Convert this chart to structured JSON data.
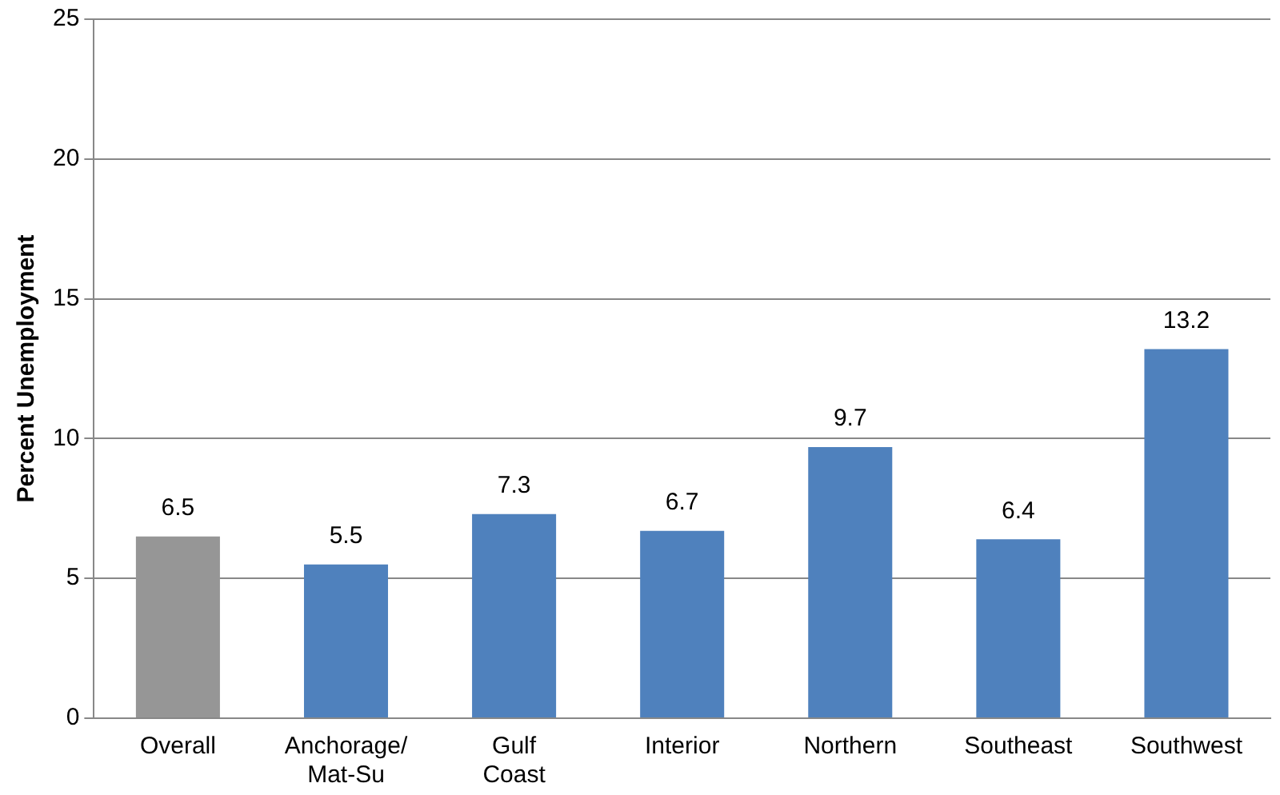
{
  "chart_data": {
    "type": "bar",
    "ylabel": "Percent Unemployment",
    "categories": [
      "Overall",
      "Anchorage/Mat-Su",
      "Gulf Coast",
      "Interior",
      "Northern",
      "Southeast",
      "Southwest"
    ],
    "values": [
      6.5,
      5.5,
      7.3,
      6.7,
      9.7,
      6.4,
      13.2
    ],
    "colors": [
      "#969696",
      "#4f81bd",
      "#4f81bd",
      "#4f81bd",
      "#4f81bd",
      "#4f81bd",
      "#4f81bd"
    ],
    "ylim": [
      0,
      25
    ],
    "yticks": [
      0,
      5,
      10,
      15,
      20,
      25
    ],
    "grid": "y",
    "legend": false,
    "data_labels": true
  }
}
